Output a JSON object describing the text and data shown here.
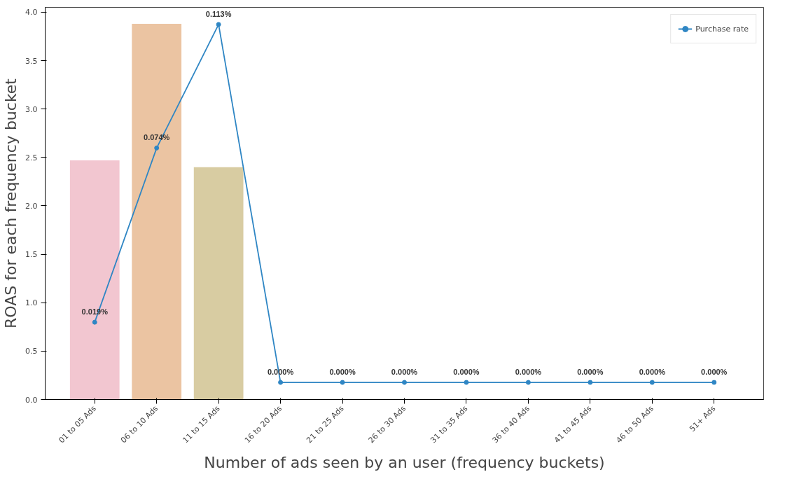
{
  "chart_data": {
    "type": "bar",
    "xlabel": "Number of ads seen by an user (frequency buckets)",
    "ylabel": "ROAS for each frequency bucket",
    "categories": [
      "01 to 05 Ads",
      "06 to 10 Ads",
      "11 to 15 Ads",
      "16 to 20 Ads",
      "21 to 25 Ads",
      "26 to 30 Ads",
      "31 to 35 Ads",
      "36 to 40 Ads",
      "41 to 45 Ads",
      "46 to 50 Ads",
      "51+ Ads"
    ],
    "ylim": [
      0,
      4.05
    ],
    "yticks": [
      {
        "value": 0,
        "label": "0.0"
      },
      0.5,
      {
        "value": 1,
        "label": "1.0"
      },
      1.5,
      {
        "value": 2,
        "label": "2.0"
      },
      2.5,
      {
        "value": 3,
        "label": "3.0"
      },
      3.5,
      {
        "value": 4,
        "label": "4.0"
      }
    ],
    "y2lim": [
      -0.0054,
      0.1184
    ],
    "tick_labels": "xy",
    "grid": false,
    "legend": "top right",
    "series": [
      {
        "colors": [
          "#f2c6d0",
          "#ebc4a2",
          "#d8cca2",
          null,
          null,
          null,
          null,
          null,
          null,
          null,
          null
        ],
        "values": [
          2.47,
          3.88,
          2.4,
          null,
          null,
          null,
          null,
          null,
          null,
          null,
          null
        ]
      },
      {
        "type": "line",
        "name": "Purchase rate",
        "color": "#2f86c4",
        "axis": "y2",
        "marker": "circle",
        "line_style": "solid",
        "values": [
          0.019,
          0.074,
          0.113,
          0,
          0,
          0,
          0,
          0,
          0,
          0,
          0
        ],
        "value_labels": [
          "0.019%",
          "0.074%",
          "0.113%",
          "0.000%",
          "0.000%",
          "0.000%",
          "0.000%",
          "0.000%",
          "0.000%",
          "0.000%",
          "0.000%"
        ]
      }
    ]
  }
}
